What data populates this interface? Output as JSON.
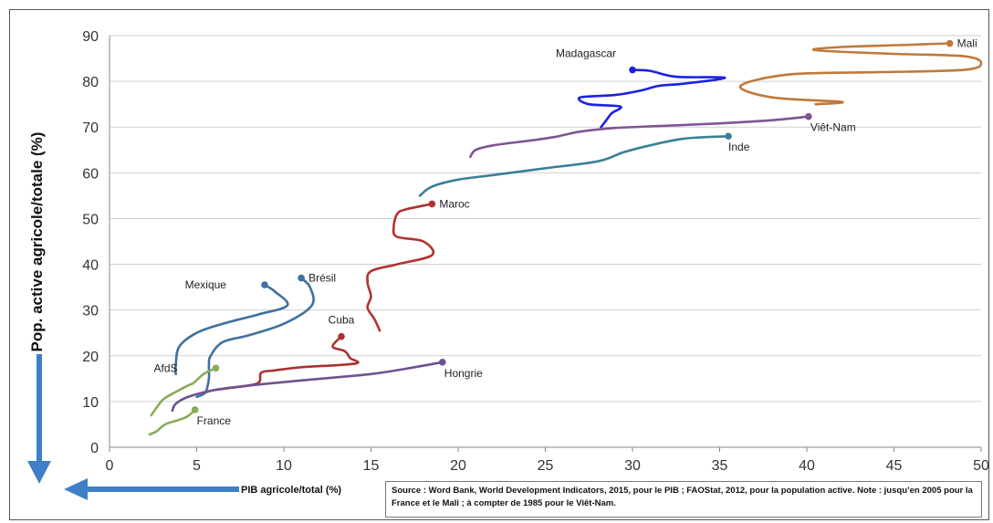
{
  "chart_data": {
    "type": "line",
    "title": "",
    "xlabel": "PIB agricole/total (%)",
    "ylabel": "Pop. active agricole/totale (%)",
    "xlim": [
      0,
      50
    ],
    "ylim": [
      0,
      90
    ],
    "x_ticks": [
      0,
      5,
      10,
      15,
      20,
      25,
      30,
      35,
      40,
      45,
      50
    ],
    "y_ticks": [
      0,
      10,
      20,
      30,
      40,
      50,
      60,
      70,
      80,
      90
    ],
    "grid": "horizontal",
    "series": [
      {
        "name": "Mali",
        "color": "#c0793a",
        "label_side": "right",
        "points": [
          [
            48.2,
            88.3
          ],
          [
            46,
            88
          ],
          [
            42,
            87.5
          ],
          [
            40.5,
            86.8
          ],
          [
            45,
            86
          ],
          [
            49,
            85.5
          ],
          [
            50,
            84
          ],
          [
            49,
            82.5
          ],
          [
            44,
            82
          ],
          [
            39,
            81.5
          ],
          [
            36.2,
            79
          ],
          [
            38,
            76.5
          ],
          [
            42,
            75.5
          ],
          [
            40.5,
            75
          ]
        ]
      },
      {
        "name": "Madagascar",
        "color": "#1a22e0",
        "label_side": "above-left",
        "points": [
          [
            30,
            82.5
          ],
          [
            31,
            82.3
          ],
          [
            32.5,
            81
          ],
          [
            35.3,
            80.8
          ],
          [
            33,
            79.5
          ],
          [
            31.5,
            79
          ],
          [
            30.5,
            78
          ],
          [
            29,
            77
          ],
          [
            27,
            76.5
          ],
          [
            27.5,
            75
          ],
          [
            29.3,
            74.5
          ],
          [
            28.8,
            73
          ],
          [
            28.5,
            71.5
          ],
          [
            28.2,
            70
          ]
        ]
      },
      {
        "name": "Viêt-Nam",
        "color": "#7e5496",
        "label_side": "below-right",
        "points": [
          [
            40.1,
            72.3
          ],
          [
            38,
            71.5
          ],
          [
            35,
            70.8
          ],
          [
            32,
            70.3
          ],
          [
            29,
            69.8
          ],
          [
            27,
            69
          ],
          [
            25.5,
            67.8
          ],
          [
            24,
            67
          ],
          [
            22,
            66
          ],
          [
            21,
            65
          ],
          [
            20.7,
            63.5
          ]
        ]
      },
      {
        "name": "Inde",
        "color": "#3a8094",
        "label_side": "below",
        "points": [
          [
            35.5,
            68
          ],
          [
            33,
            67.5
          ],
          [
            31,
            66
          ],
          [
            29.5,
            64.5
          ],
          [
            28,
            62.5
          ],
          [
            25,
            61
          ],
          [
            22,
            59.5
          ],
          [
            20,
            58.5
          ],
          [
            18.5,
            57
          ],
          [
            17.8,
            55
          ]
        ]
      },
      {
        "name": "Maroc",
        "color": "#b13330",
        "label_side": "right",
        "points": [
          [
            18.5,
            53.2
          ],
          [
            17,
            52
          ],
          [
            16.5,
            51
          ],
          [
            16.3,
            48
          ],
          [
            16.5,
            46
          ],
          [
            18,
            45
          ],
          [
            18.5,
            42
          ],
          [
            16.5,
            40
          ],
          [
            15,
            38.5
          ],
          [
            14.8,
            36
          ],
          [
            15,
            33
          ],
          [
            14.8,
            30.5
          ],
          [
            15.2,
            28
          ],
          [
            15.5,
            25.5
          ]
        ]
      },
      {
        "name": "Brésil",
        "color": "#3f71a0",
        "label_side": "right",
        "points": [
          [
            11,
            37
          ],
          [
            11.5,
            35
          ],
          [
            11.6,
            31
          ],
          [
            10,
            27
          ],
          [
            8,
            24.5
          ],
          [
            6.5,
            23
          ],
          [
            5.8,
            20
          ],
          [
            5.7,
            18
          ],
          [
            5.7,
            15
          ],
          [
            5.5,
            12
          ],
          [
            5,
            11
          ]
        ]
      },
      {
        "name": "Mexique",
        "color": "#3f71a0",
        "label_side": "left",
        "points": [
          [
            8.9,
            35.5
          ],
          [
            9.5,
            34
          ],
          [
            10.2,
            31
          ],
          [
            8.5,
            29
          ],
          [
            6.5,
            27
          ],
          [
            5,
            25
          ],
          [
            4,
            22
          ],
          [
            3.8,
            18
          ],
          [
            3.8,
            16
          ]
        ]
      },
      {
        "name": "Cuba",
        "color": "#a83232",
        "label_side": "above",
        "points": [
          [
            13.3,
            24.2
          ],
          [
            12.8,
            22
          ],
          [
            13.5,
            21
          ],
          [
            13.8,
            19.5
          ],
          [
            14.1,
            18.3
          ],
          [
            11,
            17.5
          ],
          [
            9.5,
            16.8
          ],
          [
            8.7,
            16.3
          ],
          [
            8.5,
            14
          ],
          [
            7,
            13
          ],
          [
            6,
            12.5
          ],
          [
            5.5,
            12
          ]
        ]
      },
      {
        "name": "Hongrie",
        "color": "#6e5291",
        "label_side": "below-right",
        "points": [
          [
            19.1,
            18.6
          ],
          [
            17.5,
            17.5
          ],
          [
            15,
            16
          ],
          [
            11,
            14.6
          ],
          [
            8,
            13.5
          ],
          [
            6,
            12.5
          ],
          [
            4.5,
            11
          ],
          [
            3.8,
            9.5
          ],
          [
            3.6,
            8
          ]
        ]
      },
      {
        "name": "AfdS",
        "color": "#8aab5a",
        "label_side": "left",
        "points": [
          [
            6.1,
            17.3
          ],
          [
            5.4,
            16
          ],
          [
            4.8,
            14
          ],
          [
            4.5,
            13.5
          ],
          [
            3.2,
            10.8
          ],
          [
            2.8,
            9.2
          ],
          [
            2.4,
            7
          ]
        ]
      },
      {
        "name": "France",
        "color": "#8aab5a",
        "label_side": "below-right",
        "points": [
          [
            4.9,
            8.2
          ],
          [
            4.5,
            6.8
          ],
          [
            4,
            6
          ],
          [
            3.2,
            5
          ],
          [
            2.7,
            3.5
          ],
          [
            2.3,
            2.8
          ]
        ]
      }
    ],
    "source": "Source : Word Bank, World Development Indicators, 2015, pour le PIB ; FAOStat, 2012, pour la population active. Note : jusqu’en 2005 pour la France et le Mali ; à compter de 1985 pour le Viêt-Nam."
  },
  "arrows": {
    "color": "#3d7fc8"
  }
}
